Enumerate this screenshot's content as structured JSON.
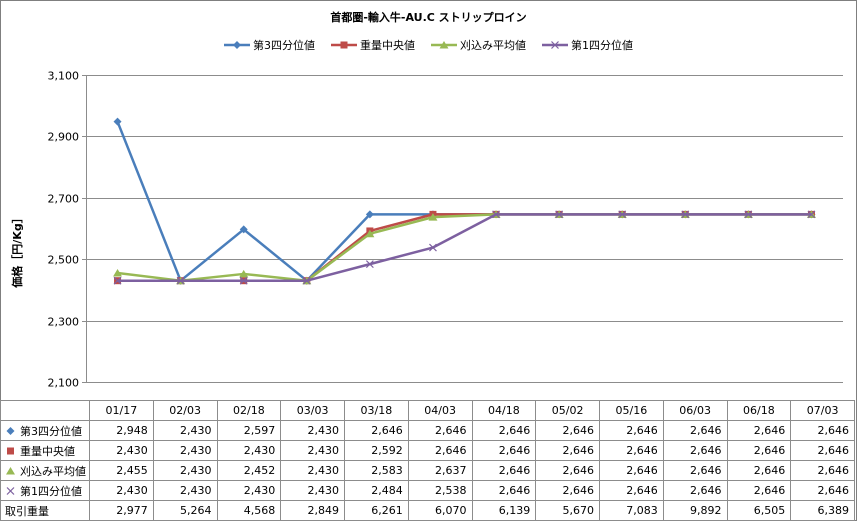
{
  "chart_data": {
    "type": "line",
    "title": "首都圏-輸入牛-AU.C ストリップロイン",
    "ylabel": "価格［円/Kg］",
    "ylim": [
      2100,
      3100
    ],
    "yticks": [
      "2,100",
      "2,300",
      "2,500",
      "2,700",
      "2,900",
      "3,100"
    ],
    "ytick_values": [
      2100,
      2300,
      2500,
      2700,
      2900,
      3100
    ],
    "categories": [
      "01/17",
      "02/03",
      "02/18",
      "03/03",
      "03/18",
      "04/03",
      "04/18",
      "05/02",
      "05/16",
      "06/03",
      "06/18",
      "07/03"
    ],
    "grid": true,
    "legend_position": "top",
    "series": [
      {
        "name": "第3四分位値",
        "color": "#4a7ebb",
        "marker": "diamond",
        "values": [
          2948,
          2430,
          2597,
          2430,
          2646,
          2646,
          2646,
          2646,
          2646,
          2646,
          2646,
          2646
        ]
      },
      {
        "name": "重量中央値",
        "color": "#be4b48",
        "marker": "square",
        "values": [
          2430,
          2430,
          2430,
          2430,
          2592,
          2646,
          2646,
          2646,
          2646,
          2646,
          2646,
          2646
        ]
      },
      {
        "name": "刈込み平均値",
        "color": "#98b954",
        "marker": "triangle",
        "values": [
          2455,
          2430,
          2452,
          2430,
          2583,
          2637,
          2646,
          2646,
          2646,
          2646,
          2646,
          2646
        ]
      },
      {
        "name": "第1四分位値",
        "color": "#7d60a0",
        "marker": "x",
        "values": [
          2430,
          2430,
          2430,
          2430,
          2484,
          2538,
          2646,
          2646,
          2646,
          2646,
          2646,
          2646
        ]
      }
    ],
    "table": {
      "rows": [
        {
          "label": "第3四分位値",
          "marker": "diamond",
          "color": "#4a7ebb",
          "cells": [
            "2,948",
            "2,430",
            "2,597",
            "2,430",
            "2,646",
            "2,646",
            "2,646",
            "2,646",
            "2,646",
            "2,646",
            "2,646",
            "2,646"
          ]
        },
        {
          "label": "重量中央値",
          "marker": "square",
          "color": "#be4b48",
          "cells": [
            "2,430",
            "2,430",
            "2,430",
            "2,430",
            "2,592",
            "2,646",
            "2,646",
            "2,646",
            "2,646",
            "2,646",
            "2,646",
            "2,646"
          ]
        },
        {
          "label": "刈込み平均値",
          "marker": "triangle",
          "color": "#98b954",
          "cells": [
            "2,455",
            "2,430",
            "2,452",
            "2,430",
            "2,583",
            "2,637",
            "2,646",
            "2,646",
            "2,646",
            "2,646",
            "2,646",
            "2,646"
          ]
        },
        {
          "label": "第1四分位値",
          "marker": "x",
          "color": "#7d60a0",
          "cells": [
            "2,430",
            "2,430",
            "2,430",
            "2,430",
            "2,484",
            "2,538",
            "2,646",
            "2,646",
            "2,646",
            "2,646",
            "2,646",
            "2,646"
          ]
        },
        {
          "label": "取引重量",
          "marker": "",
          "color": "",
          "cells": [
            "2,977",
            "5,264",
            "4,568",
            "2,849",
            "6,261",
            "6,070",
            "6,139",
            "5,670",
            "7,083",
            "9,892",
            "6,505",
            "6,389"
          ]
        }
      ]
    }
  }
}
